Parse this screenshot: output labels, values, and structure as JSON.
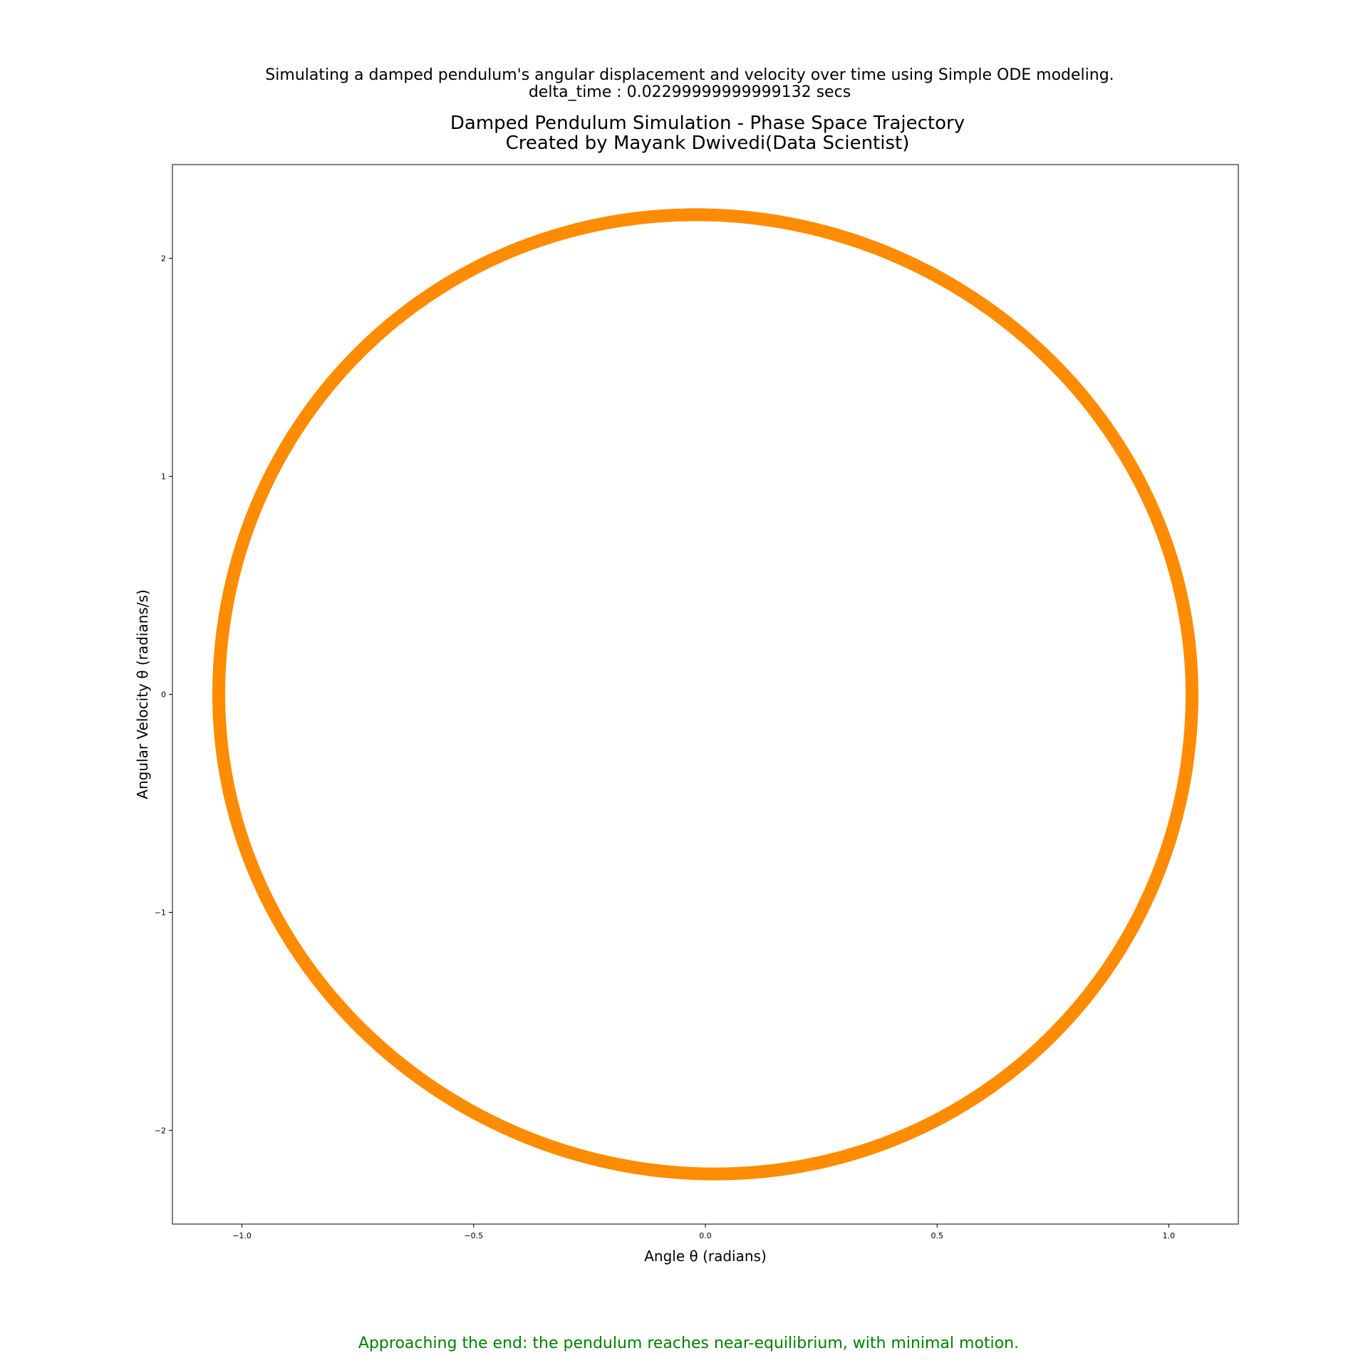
{
  "header": {
    "line1": "Simulating a damped pendulum's angular displacement and velocity over time using Simple ODE modeling.",
    "line2": "delta_time : 0.02299999999999132 secs"
  },
  "chart_data": {
    "type": "line",
    "title_line1": "Damped Pendulum Simulation - Phase Space Trajectory",
    "title_line2": "Created by Mayank Dwivedi(Data Scientist)",
    "xlabel": "Angle θ (radians)",
    "ylabel": "Angular Velocity θ (radians/s)",
    "xlim": [
      -1.15,
      1.15
    ],
    "ylim": [
      -2.43,
      2.43
    ],
    "xticks": [
      -1.0,
      -0.5,
      0.0,
      0.5,
      1.0
    ],
    "xtick_labels": [
      "−1.0",
      "−0.5",
      "0.0",
      "0.5",
      "1.0"
    ],
    "yticks": [
      -2,
      -1,
      0,
      1,
      2
    ],
    "ytick_labels": [
      "−2",
      "−1",
      "0",
      "1",
      "2"
    ],
    "grid": false,
    "series": [
      {
        "color": "#ff8c00",
        "x_amplitude": 1.05,
        "v_amplitude": 2.2,
        "start": [
          1.05,
          0.0
        ],
        "points": [
          [
            1.05,
            0.0
          ],
          [
            1.04,
            -0.38
          ],
          [
            1.0,
            -0.8
          ],
          [
            0.92,
            -1.2
          ],
          [
            0.78,
            -1.58
          ],
          [
            0.6,
            -1.88
          ],
          [
            0.4,
            -2.07
          ],
          [
            0.2,
            -2.17
          ],
          [
            0.03,
            -2.2
          ],
          [
            -0.1,
            -2.19
          ],
          [
            -0.3,
            -2.1
          ],
          [
            -0.5,
            -1.93
          ],
          [
            -0.7,
            -1.62
          ],
          [
            -0.87,
            -1.2
          ],
          [
            -0.98,
            -0.7
          ],
          [
            -1.03,
            -0.3
          ],
          [
            -1.04,
            0.05
          ],
          [
            -1.03,
            0.35
          ],
          [
            -0.98,
            0.75
          ],
          [
            -0.88,
            1.15
          ],
          [
            -0.7,
            1.58
          ],
          [
            -0.5,
            1.9
          ],
          [
            -0.3,
            2.1
          ],
          [
            -0.1,
            2.18
          ],
          [
            -0.02,
            2.2
          ],
          [
            0.15,
            2.17
          ],
          [
            0.35,
            2.05
          ],
          [
            0.55,
            1.8
          ],
          [
            0.7,
            1.55
          ],
          [
            0.85,
            1.18
          ],
          [
            0.97,
            0.75
          ],
          [
            1.03,
            0.35
          ],
          [
            1.04,
            0.0
          ]
        ]
      }
    ]
  },
  "footer": {
    "text": "Approaching the end: the pendulum reaches near-equilibrium, with minimal motion.",
    "color": "#008000"
  }
}
